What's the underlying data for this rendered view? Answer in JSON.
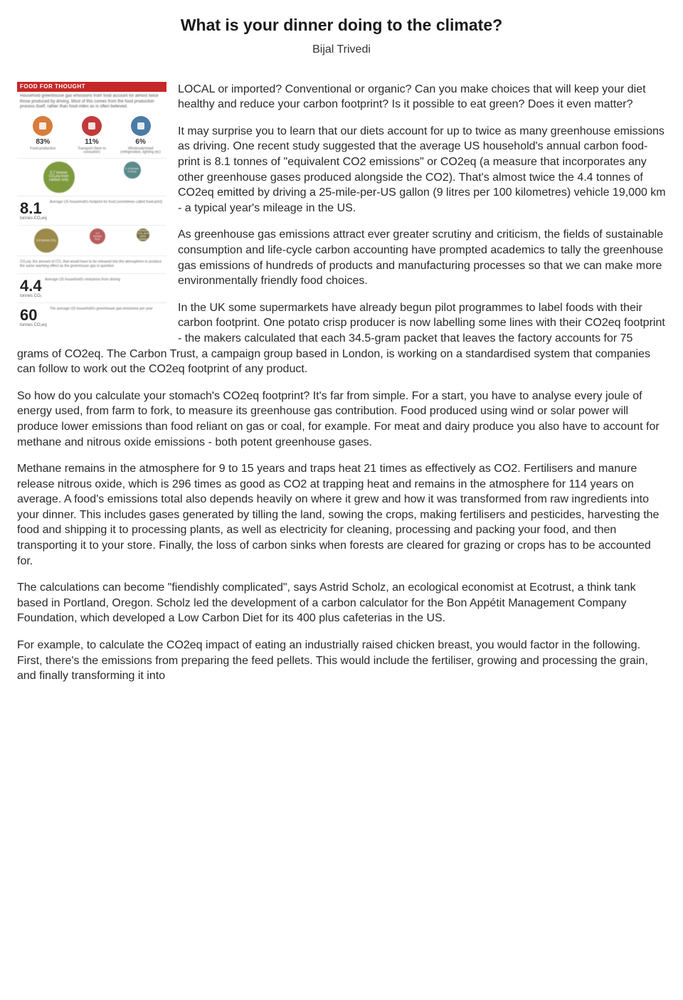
{
  "title": "What is your dinner doing to the climate?",
  "author": "Bijal Trivedi",
  "figure": {
    "header": "FOOD FOR THOUGHT",
    "subtext": "Household greenhouse gas emissions from food account for almost twice those produced by driving. Most of this comes from the food production process itself, rather than food-miles as is often believed.",
    "top_items": [
      {
        "pct": "83%",
        "label": "Food production",
        "color": "#d97b3c"
      },
      {
        "pct": "11%",
        "label": "Transport (farm to consumer)",
        "color": "#c23a3a"
      },
      {
        "pct": "6%",
        "label": "Wholesale/retail (refrigeration, lighting etc)",
        "color": "#4a7ba6"
      }
    ],
    "bubbles_top": [
      {
        "text": "5.7 tonnes CO₂eq from carbon only",
        "size": 44,
        "color": "#7d9b3e"
      },
      {
        "text": "1.4 tonnes CO₂eq",
        "size": 24,
        "color": "#5a8a8a"
      }
    ],
    "big1": {
      "num": "8.1",
      "unit": "tonnes CO₂eq",
      "desc": "Average US household's footprint for food (sometimes called food-print)"
    },
    "bubbles_mid": [
      {
        "text": "3.0 tonnes CO₂",
        "size": 34,
        "color": "#9b8a4a"
      },
      {
        "text": "1.0 tonnes N₂O",
        "size": 22,
        "color": "#b85c5c"
      },
      {
        "text": "0.1 tonnes CH₄ and other emission gases",
        "size": 18,
        "color": "#7a7044"
      }
    ],
    "mid_right": "CO₂eq: the amount of CO₂ that would have to be released into the atmosphere to produce the same warming effect as the greenhouse gas in question",
    "big2": {
      "num": "4.4",
      "unit": "tonnes CO₂",
      "desc": "Average US household's emissions from driving"
    },
    "big3": {
      "num": "60",
      "unit": "tonnes CO₂eq",
      "desc": "The average US household's greenhouse gas emissions per year"
    }
  },
  "paragraphs": [
    "LOCAL or imported? Conventional or organic? Can you make choices that will keep your diet healthy and reduce your carbon footprint? Is it possible to eat green? Does it even matter?",
    "It may surprise you to learn that our diets account for up to twice as many greenhouse emissions as driving. One recent study suggested that the average US household's annual carbon food-print is 8.1 tonnes of \"equivalent CO2 emissions\" or CO2eq (a measure that incorporates any other greenhouse gases produced alongside the CO2). That's almost twice the 4.4 tonnes of CO2eq emitted by driving a 25-mile-per-US gallon (9 litres per 100 kilometres) vehicle 19,000 km - a typical year's mileage in the US.",
    "As greenhouse gas emissions attract ever greater scrutiny and criticism, the fields of sustainable consumption and life-cycle carbon accounting have prompted academics to tally the greenhouse gas emissions of hundreds of products and manufacturing processes so that we can make more environmentally friendly food choices.",
    "In the UK some supermarkets have already begun pilot programmes to label foods with their carbon footprint. One potato crisp producer is now labelling some lines with their CO2eq footprint - the makers calculated that each 34.5-gram packet that leaves the factory accounts for 75 grams of CO2eq. The Carbon Trust, a campaign group based in London, is working on a standardised system that companies can follow to work out the CO2eq footprint of any product.",
    "So how do you calculate your stomach's CO2eq footprint? It's far from simple. For a start, you have to analyse every joule of energy used, from farm to fork, to measure its greenhouse gas contribution. Food produced using wind or solar power will produce lower emissions than food reliant on gas or coal, for example. For meat and dairy produce you also have to account for methane and nitrous oxide emissions - both potent greenhouse gases.",
    "Methane remains in the atmosphere for 9 to 15 years and traps heat 21 times as effectively as CO2. Fertilisers and manure release nitrous oxide, which is 296 times as good as CO2 at trapping heat and remains in the atmosphere for 114 years on average. A food's emissions total also depends heavily on where it grew and how it was transformed from raw ingredients into your dinner. This includes gases generated by tilling the land, sowing the crops, making fertilisers and pesticides, harvesting the food and shipping it to processing plants, as well as electricity for cleaning, processing and packing your food, and then transporting it to your store. Finally, the loss of carbon sinks when forests are cleared for grazing or crops has to be accounted for.",
    "The calculations can become \"fiendishly complicated\", says Astrid Scholz, an ecological economist at Ecotrust, a think tank based in Portland, Oregon. Scholz led the development of a carbon calculator for the Bon Appétit Management Company Foundation, which developed a Low Carbon Diet for its 400 plus cafeterias in the US.",
    "For example, to calculate the CO2eq impact of eating an industrially raised chicken breast, you would factor in the following. First, there's the emissions from preparing the feed pellets. This would include the fertiliser, growing and processing the grain, and finally transforming it into"
  ],
  "colors": {
    "text": "#2a2a2a",
    "title": "#1a1a1a",
    "bg": "#ffffff"
  }
}
